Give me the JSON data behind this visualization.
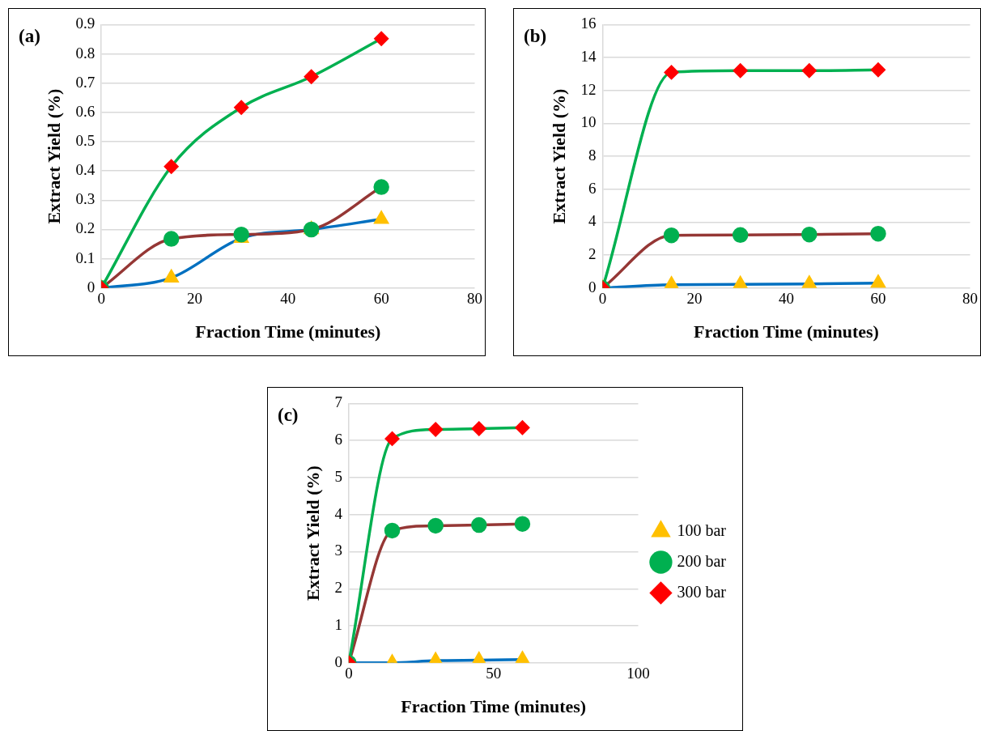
{
  "chart_data": [
    {
      "type": "line",
      "title": "(a)",
      "xlabel": "Fraction Time (minutes)",
      "ylabel": "Extract Yield (%)",
      "x": [
        0,
        15,
        30,
        45,
        60
      ],
      "xlim": [
        0,
        80
      ],
      "xticks": [
        0,
        20,
        40,
        60,
        80
      ],
      "ylim": [
        0,
        0.9
      ],
      "yticks": [
        0,
        0.1,
        0.2,
        0.3,
        0.4,
        0.5,
        0.6,
        0.7,
        0.8,
        0.9
      ],
      "grid": "y",
      "legend": false,
      "series": [
        {
          "color": "#0070c0",
          "marker": "triangle",
          "colors": [
            "#ffc000",
            "#ffc000",
            "#ffc000",
            "#ffc000",
            "#ffc000"
          ],
          "values": [
            0,
            0.035,
            0.17,
            0.2,
            0.235
          ]
        },
        {
          "color": "#953735",
          "marker": "circle",
          "colors": [
            "#00b050",
            "#00b050",
            "#00b050",
            "#00b050",
            "#00b050"
          ],
          "values": [
            0,
            0.168,
            0.183,
            0.2,
            0.345
          ]
        },
        {
          "color": "#00b050",
          "marker": "diamond",
          "colors": [
            "#ff0000",
            "#ff0000",
            "#ff0000",
            "#ff0000",
            "#ff0000"
          ],
          "values": [
            0,
            0.415,
            0.617,
            0.722,
            0.852
          ]
        }
      ]
    },
    {
      "type": "line",
      "title": "(b)",
      "xlabel": "Fraction Time (minutes)",
      "ylabel": "Extract Yield (%)",
      "x": [
        0,
        15,
        30,
        45,
        60
      ],
      "xlim": [
        0,
        80
      ],
      "xticks": [
        0,
        20,
        40,
        60,
        80
      ],
      "ylim": [
        0,
        16
      ],
      "yticks": [
        0,
        2,
        4,
        6,
        8,
        10,
        12,
        14,
        16
      ],
      "grid": "y",
      "legend": false,
      "series": [
        {
          "color": "#0070c0",
          "marker": "triangle",
          "colors": [
            "#ffc000",
            "#ffc000",
            "#ffc000",
            "#ffc000",
            "#ffc000"
          ],
          "values": [
            0,
            0.2,
            0.22,
            0.25,
            0.3
          ]
        },
        {
          "color": "#953735",
          "marker": "circle",
          "colors": [
            "#00b050",
            "#00b050",
            "#00b050",
            "#00b050",
            "#00b050"
          ],
          "values": [
            0,
            3.2,
            3.22,
            3.25,
            3.3
          ]
        },
        {
          "color": "#00b050",
          "marker": "diamond",
          "colors": [
            "#ff0000",
            "#ff0000",
            "#ff0000",
            "#ff0000",
            "#ff0000"
          ],
          "values": [
            0,
            13.1,
            13.2,
            13.2,
            13.25
          ]
        }
      ]
    },
    {
      "type": "line",
      "title": "(c)",
      "xlabel": "Fraction Time (minutes)",
      "ylabel": "Extract Yield (%)",
      "x": [
        0,
        15,
        30,
        45,
        60
      ],
      "xlim": [
        0,
        100
      ],
      "xticks": [
        0,
        50,
        100
      ],
      "ylim": [
        0,
        7
      ],
      "yticks": [
        0,
        1,
        2,
        3,
        4,
        5,
        6,
        7
      ],
      "grid": "y",
      "legend": "right",
      "series": [
        {
          "name": "100 bar",
          "color": "#0070c0",
          "marker": "triangle",
          "colors": [
            "#ffc000",
            "#ffc000",
            "#ffc000",
            "#ffc000",
            "#ffc000"
          ],
          "values": [
            0,
            0,
            0.06,
            0.07,
            0.09
          ]
        },
        {
          "name": "200 bar",
          "color": "#953735",
          "marker": "circle",
          "colors": [
            "#00b050",
            "#00b050",
            "#00b050",
            "#00b050",
            "#00b050"
          ],
          "values": [
            0,
            3.57,
            3.7,
            3.72,
            3.75
          ]
        },
        {
          "name": "300 bar",
          "color": "#00b050",
          "marker": "diamond",
          "colors": [
            "#ff0000",
            "#ff0000",
            "#ff0000",
            "#ff0000",
            "#ff0000"
          ],
          "values": [
            0,
            6.05,
            6.3,
            6.32,
            6.35
          ]
        }
      ]
    }
  ]
}
